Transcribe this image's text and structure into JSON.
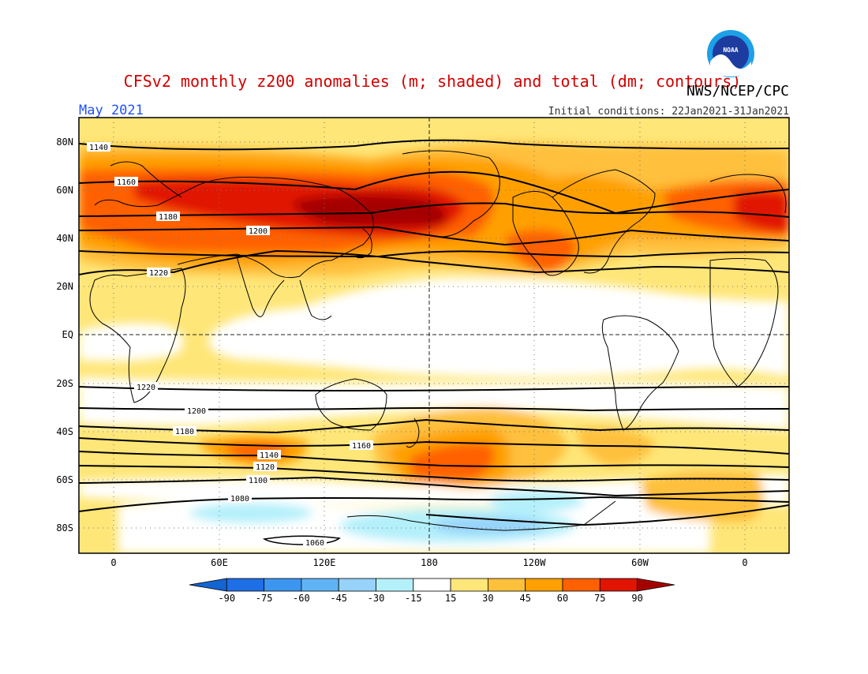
{
  "title": "CFSv2 monthly z200 anomalies (m; shaded) and total (dm; contours)",
  "agency": "NWS/NCEP/CPC",
  "logo_text": "NOAA",
  "month": "May 2021",
  "init_conditions": "Initial conditions: 22Jan2021-31Jan2021",
  "lat_labels": [
    "80N",
    "60N",
    "40N",
    "20N",
    "EQ",
    "20S",
    "40S",
    "60S",
    "80S"
  ],
  "lon_labels": [
    "0",
    "60E",
    "120E",
    "180",
    "120W",
    "60W",
    "0"
  ],
  "colorbar": {
    "ticks": [
      "-90",
      "-75",
      "-60",
      "-45",
      "-30",
      "-15",
      "15",
      "30",
      "45",
      "60",
      "75",
      "90"
    ],
    "colors": [
      "#1464d2",
      "#1e6ee6",
      "#3c96f0",
      "#5fb4f5",
      "#96d2fa",
      "#b4f0fa",
      "#ffffff",
      "#ffe678",
      "#ffc03c",
      "#ffa000",
      "#ff6000",
      "#e11400",
      "#a50000"
    ]
  },
  "contour_labels": [
    "1140",
    "1160",
    "1180",
    "1200",
    "1220",
    "1220",
    "1200",
    "1180",
    "1160",
    "1140",
    "1120",
    "1100",
    "1080",
    "1060"
  ]
}
